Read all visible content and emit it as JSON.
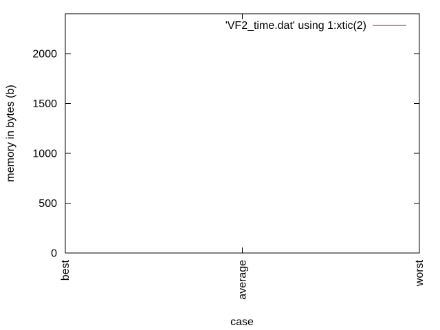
{
  "chart_data": {
    "type": "line",
    "title": "",
    "xlabel": "case",
    "ylabel": "memory in bytes (b)",
    "categories": [
      "best",
      "average",
      "worst"
    ],
    "x": [
      0,
      1,
      2
    ],
    "xlim": [
      0,
      2
    ],
    "ylim": [
      0,
      2400
    ],
    "yticks": [
      0,
      500,
      1000,
      1500,
      2000
    ],
    "ytick_labels": [
      "0",
      "500",
      "1000",
      "1500",
      "2000"
    ],
    "grid": false,
    "legend_position": "top-right",
    "series": [
      {
        "name": "'VF2_time.dat' using 1:xtic(2)",
        "color": "#cc0000",
        "values": [
          null,
          null,
          null
        ]
      }
    ]
  }
}
